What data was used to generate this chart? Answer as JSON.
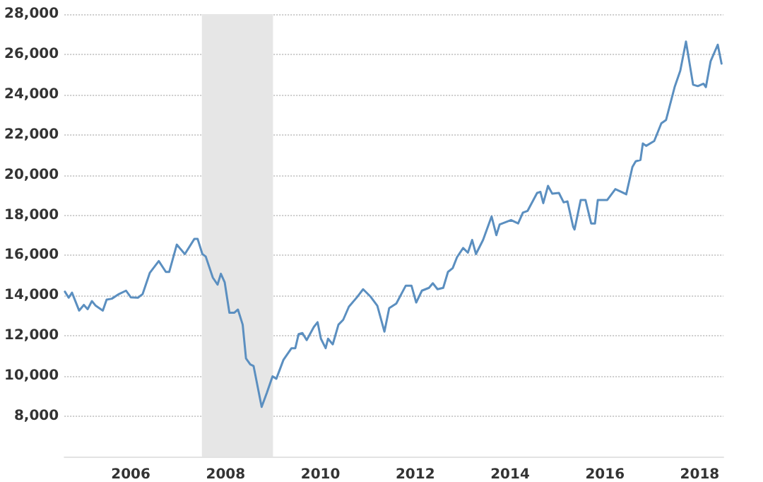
{
  "chart_data": {
    "type": "line",
    "x": [
      2004.61,
      2004.69,
      2004.76,
      2004.91,
      2005.01,
      2005.09,
      2005.18,
      2005.26,
      2005.41,
      2005.49,
      2005.6,
      2005.75,
      2005.9,
      2006.0,
      2006.15,
      2006.25,
      2006.4,
      2006.59,
      2006.74,
      2006.81,
      2006.97,
      2007.14,
      2007.34,
      2007.41,
      2007.51,
      2007.58,
      2007.73,
      2007.83,
      2007.9,
      2007.98,
      2008.08,
      2008.18,
      2008.26,
      2008.36,
      2008.43,
      2008.52,
      2008.59,
      2008.76,
      2008.87,
      2008.99,
      2009.07,
      2009.22,
      2009.39,
      2009.47,
      2009.54,
      2009.62,
      2009.71,
      2009.86,
      2009.94,
      2010.01,
      2010.11,
      2010.16,
      2010.26,
      2010.38,
      2010.48,
      2010.6,
      2010.77,
      2010.9,
      2011.05,
      2011.2,
      2011.35,
      2011.45,
      2011.6,
      2011.8,
      2011.92,
      2012.02,
      2012.14,
      2012.29,
      2012.37,
      2012.47,
      2012.59,
      2012.69,
      2012.79,
      2012.88,
      2013.01,
      2013.11,
      2013.2,
      2013.28,
      2013.43,
      2013.61,
      2013.71,
      2013.78,
      2014.02,
      2014.17,
      2014.27,
      2014.37,
      2014.57,
      2014.64,
      2014.7,
      2014.8,
      2014.89,
      2015.03,
      2015.13,
      2015.21,
      2015.33,
      2015.36,
      2015.49,
      2015.59,
      2015.71,
      2015.79,
      2015.85,
      2016.05,
      2016.22,
      2016.35,
      2016.45,
      2016.58,
      2016.65,
      2016.75,
      2016.8,
      2016.87,
      2017.04,
      2017.19,
      2017.29,
      2017.47,
      2017.59,
      2017.71,
      2017.86,
      2017.96,
      2018.08,
      2018.13,
      2018.23,
      2018.38,
      2018.46
    ],
    "series": [
      {
        "color": "#5b8fc0",
        "values": [
          14200,
          13900,
          14150,
          13260,
          13540,
          13330,
          13730,
          13500,
          13260,
          13800,
          13850,
          14080,
          14250,
          13920,
          13900,
          14080,
          15130,
          15720,
          15180,
          15180,
          16540,
          16070,
          16820,
          16820,
          16070,
          15950,
          14900,
          14550,
          15090,
          14670,
          13150,
          13150,
          13310,
          12560,
          10880,
          10580,
          10500,
          8470,
          9170,
          9990,
          9870,
          10810,
          11390,
          11390,
          12090,
          12140,
          11790,
          12440,
          12680,
          11860,
          11390,
          11860,
          11580,
          12560,
          12800,
          13450,
          13920,
          14320,
          13970,
          13500,
          12210,
          13380,
          13610,
          14500,
          14500,
          13660,
          14250,
          14390,
          14620,
          14320,
          14390,
          15180,
          15370,
          15910,
          16370,
          16140,
          16770,
          16070,
          16770,
          17940,
          17010,
          17540,
          17760,
          17590,
          18130,
          18220,
          19110,
          19160,
          18600,
          19460,
          19070,
          19110,
          18640,
          18690,
          17430,
          17290,
          18760,
          18760,
          17590,
          17590,
          18760,
          18760,
          19300,
          19160,
          19040,
          20400,
          20680,
          20750,
          21570,
          21450,
          21690,
          22570,
          22740,
          24370,
          25190,
          26640,
          24490,
          24420,
          24540,
          24370,
          25660,
          26480,
          25540
        ]
      }
    ],
    "xlim": [
      2004.6,
      2018.5
    ],
    "xticks": [
      2006,
      2008,
      2010,
      2012,
      2014,
      2016,
      2018
    ],
    "ylim": [
      6000,
      28000
    ],
    "yticks": [
      {
        "value": 8000,
        "label": "8,000"
      },
      {
        "value": 10000,
        "label": "10,000"
      },
      {
        "value": 12000,
        "label": "12,000"
      },
      {
        "value": 14000,
        "label": "14,000"
      },
      {
        "value": 16000,
        "label": "16,000"
      },
      {
        "value": 18000,
        "label": "18,000"
      },
      {
        "value": 20000,
        "label": "20,000"
      },
      {
        "value": 22000,
        "label": "22,000"
      },
      {
        "value": 24000,
        "label": "24,000"
      },
      {
        "value": 26000,
        "label": "26,000"
      },
      {
        "value": 28000,
        "label": "28,000"
      }
    ],
    "bands": [
      {
        "axis": "x",
        "from": 2007.5,
        "to": 2009.0,
        "color": "#e6e6e6"
      }
    ],
    "grid": "y",
    "marker": "none",
    "line_style": "solid"
  }
}
